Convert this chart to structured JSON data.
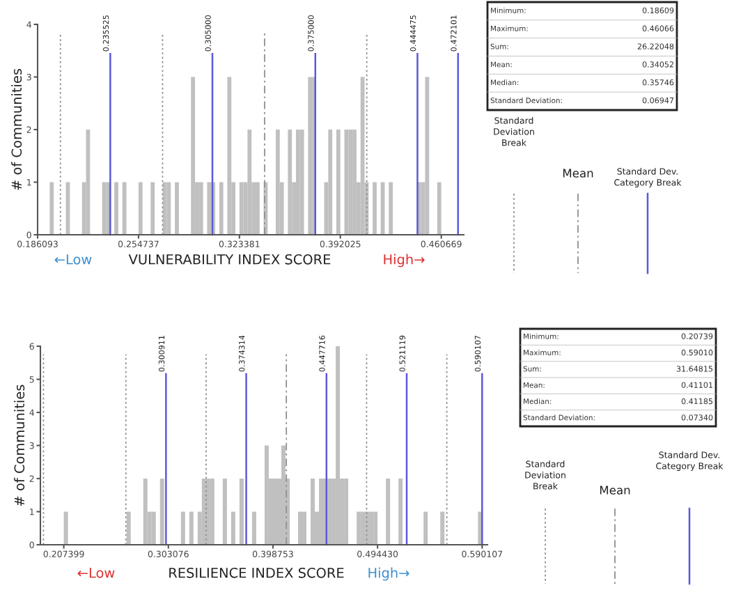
{
  "chart_data": [
    {
      "type": "histogram",
      "xlabel": "VULNERABILITY INDEX SCORE",
      "ylabel": "# of Communities",
      "color": "#c0c0c0",
      "legend": "right",
      "bins": [
        0.186093,
        0.188839,
        0.191585,
        0.19433,
        0.197076,
        0.199822,
        0.202568,
        0.205313,
        0.208059,
        0.210805,
        0.213551,
        0.216296,
        0.219042,
        0.221788,
        0.224534,
        0.227279,
        0.230025,
        0.232771,
        0.235517,
        0.238262,
        0.241008,
        0.243754,
        0.2465,
        0.249245,
        0.251991,
        0.254737,
        0.257483,
        0.260228,
        0.262974,
        0.26572,
        0.268466,
        0.271211,
        0.273957,
        0.276703,
        0.279449,
        0.282194,
        0.28494,
        0.287686,
        0.290432,
        0.293177,
        0.295923,
        0.298669,
        0.301415,
        0.30416,
        0.306906,
        0.309652,
        0.312398,
        0.315143,
        0.317889,
        0.320635,
        0.323381,
        0.326127,
        0.328872,
        0.331618,
        0.334364,
        0.33711,
        0.339855,
        0.342601,
        0.345347,
        0.348093,
        0.350838,
        0.353584,
        0.35633,
        0.359076,
        0.361821,
        0.364567,
        0.367313,
        0.370059,
        0.372804,
        0.37555,
        0.378296,
        0.381042,
        0.383787,
        0.386533,
        0.389279,
        0.392025,
        0.394771,
        0.397516,
        0.400262,
        0.403008,
        0.405754,
        0.408499,
        0.411245,
        0.413991,
        0.416737,
        0.419482,
        0.422228,
        0.424974,
        0.42772,
        0.430465,
        0.433211,
        0.435957,
        0.438703,
        0.441448,
        0.444194,
        0.44694,
        0.449686,
        0.452431,
        0.455177,
        0.457923,
        0.460669
      ],
      "values": [
        0,
        0,
        0,
        1,
        0,
        0,
        0,
        1,
        0,
        0,
        0,
        1,
        2,
        0,
        0,
        0,
        1,
        1,
        0,
        1,
        0,
        1,
        0,
        0,
        0,
        1,
        0,
        0,
        1,
        0,
        0,
        1,
        1,
        0,
        1,
        0,
        0,
        0,
        3,
        1,
        1,
        0,
        1,
        1,
        0,
        1,
        0,
        3,
        1,
        0,
        1,
        1,
        2,
        1,
        1,
        0,
        1,
        0,
        0,
        2,
        1,
        0,
        2,
        1,
        2,
        2,
        0,
        3,
        3,
        0,
        0,
        1,
        2,
        0,
        2,
        0,
        2,
        2,
        2,
        1,
        3,
        1,
        0,
        1,
        0,
        1,
        0,
        1,
        0,
        0,
        0,
        0,
        0,
        0,
        1,
        1,
        3,
        0,
        0,
        1
      ],
      "xlim": [
        0.186093,
        0.476
      ],
      "xticks": [
        0.186093,
        0.254737,
        0.323381,
        0.392025,
        0.460669
      ],
      "ylim": [
        0,
        4
      ],
      "yticks": [
        0,
        1,
        2,
        3,
        4
      ],
      "ref_lines": [
        {
          "axis": "x",
          "value": 0.2016,
          "line_style": "dotted",
          "color": "#909090"
        },
        {
          "axis": "x",
          "value": 0.2711,
          "line_style": "dotted",
          "color": "#909090"
        },
        {
          "axis": "x",
          "value": 0.41,
          "line_style": "dotted",
          "color": "#909090"
        },
        {
          "axis": "x",
          "value": 0.3405,
          "line_style": "dashed",
          "color": "#909090"
        },
        {
          "axis": "x",
          "value": 0.235525,
          "label": "0.235525",
          "line_style": "solid",
          "color": "#5a5ad8"
        },
        {
          "axis": "x",
          "value": 0.305,
          "label": "0.305000",
          "line_style": "solid",
          "color": "#5a5ad8"
        },
        {
          "axis": "x",
          "value": 0.375,
          "label": "0.375000",
          "line_style": "solid",
          "color": "#5a5ad8"
        },
        {
          "axis": "x",
          "value": 0.444475,
          "label": "0.444475",
          "line_style": "solid",
          "color": "#5a5ad8"
        },
        {
          "axis": "x",
          "value": 0.472101,
          "label": "0.472101",
          "line_style": "solid",
          "color": "#5a5ad8"
        }
      ],
      "annotations": [
        "Minimum:",
        "0.18609",
        "Maximum:",
        "0.46066",
        "Sum:",
        "26.22048",
        "Mean:",
        "0.34052",
        "Median:",
        "0.35746",
        "Standard Deviation:",
        "0.06947",
        "Standard\nDeviation\nBreak",
        "Mean",
        "Standard Dev.\nCategory Break",
        "←Low",
        "High→"
      ]
    },
    {
      "type": "histogram",
      "xlabel": "RESILIENCE INDEX SCORE",
      "ylabel": "# of Communities",
      "color": "#c0c0c0",
      "legend": "right",
      "bins": [
        0.207399,
        0.211226,
        0.215053,
        0.21888,
        0.222707,
        0.226534,
        0.230361,
        0.234189,
        0.238016,
        0.241843,
        0.24567,
        0.249497,
        0.253324,
        0.257151,
        0.260978,
        0.264805,
        0.268632,
        0.272459,
        0.276286,
        0.280114,
        0.283941,
        0.287768,
        0.291595,
        0.295422,
        0.299249,
        0.303076,
        0.306903,
        0.31073,
        0.314557,
        0.318384,
        0.322211,
        0.326039,
        0.329866,
        0.333693,
        0.33752,
        0.341347,
        0.345174,
        0.349001,
        0.352828,
        0.356655,
        0.360482,
        0.364309,
        0.368136,
        0.371964,
        0.375791,
        0.379618,
        0.383445,
        0.387272,
        0.391099,
        0.394926,
        0.398753,
        0.40258,
        0.406407,
        0.410234,
        0.414061,
        0.417889,
        0.421716,
        0.425543,
        0.42937,
        0.433197,
        0.437024,
        0.440851,
        0.444678,
        0.448505,
        0.452332,
        0.456159,
        0.459986,
        0.463814,
        0.467641,
        0.471468,
        0.475295,
        0.479122,
        0.482949,
        0.486776,
        0.490603,
        0.49443,
        0.498257,
        0.502084,
        0.505911,
        0.509739,
        0.513566,
        0.517393,
        0.52122,
        0.525047,
        0.528874,
        0.532701,
        0.536528,
        0.540355,
        0.544182,
        0.548009,
        0.551836,
        0.555664,
        0.559491,
        0.563318,
        0.567145,
        0.570972,
        0.574799,
        0.578626,
        0.582453,
        0.58628,
        0.590107
      ],
      "values": [
        1,
        0,
        0,
        0,
        0,
        0,
        0,
        0,
        0,
        0,
        0,
        0,
        0,
        0,
        0,
        1,
        0,
        0,
        0,
        2,
        1,
        1,
        0,
        2,
        0,
        0,
        0,
        0,
        1,
        0,
        1,
        0,
        1,
        2,
        2,
        2,
        0,
        0,
        2,
        0,
        1,
        0,
        2,
        0,
        0,
        1,
        0,
        0,
        3,
        2,
        2,
        2,
        3,
        2,
        0,
        0,
        1,
        1,
        0,
        2,
        1,
        2,
        2,
        2,
        2,
        6,
        2,
        2,
        0,
        0,
        1,
        1,
        1,
        1,
        1,
        0,
        0,
        2,
        0,
        0,
        2,
        0,
        0,
        0,
        0,
        0,
        1,
        0,
        0,
        0,
        1,
        0,
        0,
        0,
        0,
        0,
        0,
        0,
        0,
        1
      ],
      "xlim": [
        0.186,
        0.595
      ],
      "xticks": [
        0.207399,
        0.303076,
        0.398753,
        {
          "value": 0.49443,
          "label": "0.494430"
        },
        0.590107
      ],
      "ylim": [
        0,
        6
      ],
      "yticks": [
        0,
        1,
        2,
        3,
        4,
        5,
        6
      ],
      "ref_lines": [
        {
          "axis": "x",
          "value": 0.1888,
          "line_style": "dotted",
          "color": "#909090"
        },
        {
          "axis": "x",
          "value": 0.2642,
          "line_style": "dotted",
          "color": "#909090"
        },
        {
          "axis": "x",
          "value": 0.3376,
          "line_style": "dotted",
          "color": "#909090"
        },
        {
          "axis": "x",
          "value": 0.4844,
          "line_style": "dotted",
          "color": "#909090"
        },
        {
          "axis": "x",
          "value": 0.5578,
          "line_style": "dotted",
          "color": "#909090"
        },
        {
          "axis": "x",
          "value": 0.411,
          "line_style": "dashed",
          "color": "#909090"
        },
        {
          "axis": "x",
          "value": 0.300911,
          "label": "0.300911",
          "line_style": "solid",
          "color": "#5a5ad8"
        },
        {
          "axis": "x",
          "value": 0.374314,
          "label": "0.374314",
          "line_style": "solid",
          "color": "#5a5ad8"
        },
        {
          "axis": "x",
          "value": 0.447716,
          "label": "0.447716",
          "line_style": "solid",
          "color": "#5a5ad8"
        },
        {
          "axis": "x",
          "value": 0.521119,
          "label": "0.521119",
          "line_style": "solid",
          "color": "#5a5ad8"
        },
        {
          "axis": "x",
          "value": 0.590107,
          "label": "0.590107",
          "line_style": "solid",
          "color": "#5a5ad8"
        }
      ],
      "annotations": [
        "Minimum:",
        "0.20739",
        "Maximum:",
        "0.59010",
        "Sum:",
        "31.64815",
        "Mean:",
        "0.41101",
        "Median:",
        "0.41185",
        "Standard Deviation:",
        "0.07340",
        "Standard\nDeviation\nBreak",
        "Mean",
        "Standard Dev.\nCategory Break",
        "←Low",
        "High→"
      ]
    }
  ]
}
